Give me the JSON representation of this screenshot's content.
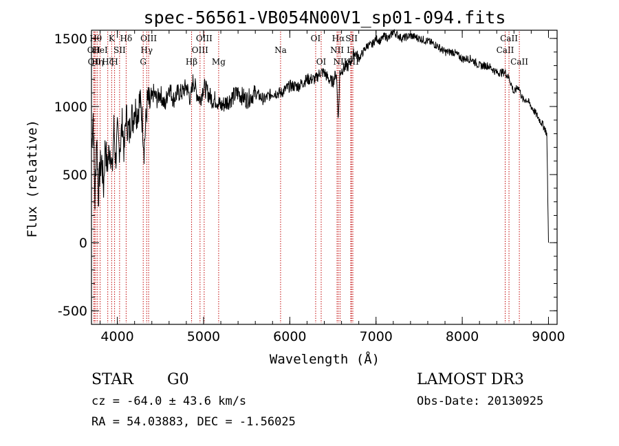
{
  "chart_data": {
    "type": "line",
    "title": "spec-56561-VB054N00V1_sp01-094.fits",
    "xlabel": "Wavelength (Å)",
    "ylabel": "Flux (relative)",
    "xlim": [
      3700,
      9100
    ],
    "ylim": [
      -600,
      1560
    ],
    "xticks": [
      4000,
      5000,
      6000,
      7000,
      8000,
      9000
    ],
    "yticks": [
      -500,
      0,
      500,
      1000,
      1500
    ],
    "x_minor_step": 200,
    "y_minor_step": 100,
    "series": [
      {
        "name": "spectrum",
        "x": [
          3700,
          3720,
          3740,
          3760,
          3780,
          3800,
          3820,
          3840,
          3860,
          3880,
          3900,
          3920,
          3940,
          3960,
          3980,
          4000,
          4020,
          4040,
          4060,
          4080,
          4100,
          4120,
          4140,
          4160,
          4180,
          4200,
          4230,
          4260,
          4290,
          4310,
          4330,
          4350,
          4380,
          4420,
          4460,
          4500,
          4550,
          4600,
          4650,
          4700,
          4750,
          4800,
          4850,
          4880,
          4920,
          4960,
          5000,
          5050,
          5100,
          5150,
          5200,
          5300,
          5400,
          5500,
          5600,
          5700,
          5800,
          5900,
          6000,
          6100,
          6200,
          6300,
          6350,
          6400,
          6450,
          6500,
          6540,
          6563,
          6580,
          6620,
          6680,
          6720,
          6760,
          6800,
          6850,
          6900,
          6950,
          7000,
          7050,
          7100,
          7150,
          7200,
          7300,
          7400,
          7500,
          7600,
          7700,
          7800,
          7900,
          8000,
          8100,
          8200,
          8300,
          8400,
          8500,
          8550,
          8600,
          8650,
          8700,
          8750,
          8800,
          8850,
          8900,
          8950,
          8980,
          9000
        ],
        "y": [
          700,
          950,
          300,
          800,
          350,
          550,
          600,
          400,
          750,
          550,
          650,
          700,
          500,
          850,
          600,
          800,
          700,
          750,
          900,
          650,
          950,
          850,
          800,
          950,
          900,
          1000,
          950,
          1050,
          900,
          700,
          880,
          1050,
          1000,
          1100,
          1050,
          1100,
          1000,
          1150,
          1050,
          1100,
          1100,
          1150,
          1050,
          1200,
          1100,
          1050,
          1150,
          1100,
          1050,
          1050,
          1000,
          1050,
          1100,
          1050,
          1100,
          1050,
          1100,
          1100,
          1150,
          1150,
          1200,
          1200,
          1250,
          1250,
          1200,
          1180,
          1250,
          900,
          1250,
          1280,
          1300,
          1350,
          1400,
          1350,
          1400,
          1450,
          1450,
          1500,
          1480,
          1520,
          1500,
          1550,
          1500,
          1520,
          1500,
          1480,
          1450,
          1400,
          1400,
          1350,
          1350,
          1300,
          1300,
          1250,
          1250,
          1200,
          1100,
          1150,
          1050,
          1050,
          1000,
          950,
          900,
          850,
          800,
          0
        ]
      }
    ],
    "lines": [
      {
        "x": 3727,
        "label": "OII",
        "row": 2
      },
      {
        "x": 3734,
        "label": "OII",
        "row": 3
      },
      {
        "x": 3750,
        "label": "Hθ",
        "row": 1
      },
      {
        "x": 3770,
        "label": "Hη",
        "row": 3
      },
      {
        "x": 3800,
        "label": "HeI",
        "row": 2
      },
      {
        "x": 3889,
        "label": "Hζ",
        "row": 3
      },
      {
        "x": 3934,
        "label": "K",
        "row": 1
      },
      {
        "x": 3968,
        "label": "H",
        "row": 3
      },
      {
        "x": 4026,
        "label": "SII",
        "row": 2
      },
      {
        "x": 4102,
        "label": "Hδ",
        "row": 1
      },
      {
        "x": 4300,
        "label": "G",
        "row": 3
      },
      {
        "x": 4340,
        "label": "Hγ",
        "row": 2
      },
      {
        "x": 4363,
        "label": "OIII",
        "row": 1
      },
      {
        "x": 4861,
        "label": "Hβ",
        "row": 3
      },
      {
        "x": 4959,
        "label": "OIII",
        "row": 2
      },
      {
        "x": 5007,
        "label": "OIII",
        "row": 1
      },
      {
        "x": 5175,
        "label": "Mg",
        "row": 3
      },
      {
        "x": 5893,
        "label": "Na",
        "row": 2
      },
      {
        "x": 6300,
        "label": "OI",
        "row": 1
      },
      {
        "x": 6364,
        "label": "OI",
        "row": 3
      },
      {
        "x": 6548,
        "label": "NII",
        "row": 2
      },
      {
        "x": 6563,
        "label": "Hα",
        "row": 1
      },
      {
        "x": 6583,
        "label": "NII",
        "row": 3
      },
      {
        "x": 6707,
        "label": "Li",
        "row": 2
      },
      {
        "x": 6716,
        "label": "SII",
        "row": 1
      },
      {
        "x": 6731,
        "label": "SII",
        "row": 3
      },
      {
        "x": 8498,
        "label": "CaII",
        "row": 2
      },
      {
        "x": 8542,
        "label": "CaII",
        "row": 1
      },
      {
        "x": 8662,
        "label": "CaII",
        "row": 3
      }
    ]
  },
  "info": {
    "class": "STAR",
    "subclass": "G0",
    "survey": "LAMOST DR3",
    "cz": "cz = -64.0 ± 43.6 km/s",
    "obs_date": "Obs-Date: 20130925",
    "radec": "RA =  54.03883, DEC =  -1.56025"
  }
}
